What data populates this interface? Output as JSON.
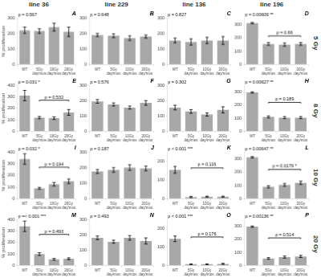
{
  "chart_data": [
    {
      "type": "bar",
      "title": "line 36",
      "ylabel": "% proliferation",
      "panel_label": "A",
      "pvalue_text": "p = 0.567",
      "categories": [
        "WT",
        "5Gy\nday/mos",
        "10Gy\nday/mos",
        "20Gy\nday/mos"
      ],
      "values": [
        220,
        215,
        240,
        210
      ],
      "errors": [
        20,
        15,
        25,
        30
      ],
      "color": "#a8a8a8",
      "ylim": [
        0,
        300
      ],
      "yticks": [
        0,
        100,
        200,
        300
      ],
      "grid": false
    },
    {
      "type": "bar",
      "title": "line 229",
      "panel_label": "B",
      "pvalue_text": "p = 0.648",
      "categories": [
        "WT",
        "5Gy\nday/mos",
        "10Gy\nday/mos",
        "20Gy\nday/mos"
      ],
      "values": [
        190,
        185,
        170,
        180
      ],
      "errors": [
        10,
        12,
        15,
        10
      ],
      "color": "#a8a8a8",
      "ylim": [
        0,
        300
      ],
      "yticks": [
        0,
        100,
        200,
        300
      ],
      "grid": false
    },
    {
      "type": "bar",
      "title": "line 136",
      "panel_label": "C",
      "pvalue_text": "p = 0.827",
      "categories": [
        "WT",
        "5Gy\nday/mos",
        "10Gy\nday/mos",
        "20Gy\nday/mos"
      ],
      "values": [
        155,
        145,
        155,
        155
      ],
      "errors": [
        15,
        20,
        20,
        25
      ],
      "color": "#a8a8a8",
      "ylim": [
        0,
        300
      ],
      "yticks": [
        0,
        100,
        200,
        300
      ],
      "grid": false
    },
    {
      "type": "bar",
      "title": "line 196",
      "side_title": "5 Gy",
      "panel_label": "D",
      "pvalue_text": "p = 0.00609 **",
      "categories": [
        "WT",
        "5Gy\nday/mos",
        "10Gy\nday/mos",
        "20Gy\nday/mos"
      ],
      "values": [
        310,
        155,
        150,
        155
      ],
      "errors": [
        5,
        10,
        12,
        10
      ],
      "color": "#a8a8a8",
      "ylim": [
        0,
        350
      ],
      "yticks": [
        0,
        100,
        200,
        300
      ],
      "grid": false,
      "bracket": {
        "from": "5Gy\nday/mos",
        "to": "20Gy\nday/mos",
        "y": 215,
        "label": "p = 0.66"
      }
    },
    {
      "type": "bar",
      "ylabel": "% proliferation",
      "panel_label": "E",
      "pvalue_text": "p = 0.031 *",
      "categories": [
        "WT",
        "5Gy\nday/mos",
        "10Gy\nday/mos",
        "20Gy\nday/mos"
      ],
      "values": [
        310,
        120,
        115,
        165
      ],
      "errors": [
        45,
        10,
        12,
        25
      ],
      "color": "#a8a8a8",
      "ylim": [
        0,
        400
      ],
      "yticks": [
        0,
        100,
        200,
        300,
        400
      ],
      "grid": false,
      "bracket": {
        "from": "5Gy\nday/mos",
        "to": "20Gy\nday/mos",
        "y": 270,
        "label": "p = 0.532"
      }
    },
    {
      "type": "bar",
      "panel_label": "F",
      "pvalue_text": "p = 0.576",
      "categories": [
        "WT",
        "5Gy\nday/mos",
        "10Gy\nday/mos",
        "20Gy\nday/mos"
      ],
      "values": [
        195,
        175,
        155,
        185
      ],
      "errors": [
        12,
        10,
        10,
        15
      ],
      "color": "#a8a8a8",
      "ylim": [
        0,
        300
      ],
      "yticks": [
        0,
        100,
        200,
        300
      ],
      "grid": false
    },
    {
      "type": "bar",
      "panel_label": "G",
      "pvalue_text": "p = 0.302",
      "categories": [
        "WT",
        "5Gy\nday/mos",
        "10Gy\nday/mos",
        "20Gy\nday/mos"
      ],
      "values": [
        155,
        130,
        110,
        140
      ],
      "errors": [
        15,
        12,
        10,
        20
      ],
      "color": "#a8a8a8",
      "ylim": [
        0,
        300
      ],
      "yticks": [
        0,
        100,
        200,
        300
      ],
      "grid": false
    },
    {
      "type": "bar",
      "side_title": "8 Gy",
      "panel_label": "H",
      "pvalue_text": "p = 0.00627 **",
      "categories": [
        "WT",
        "5Gy\nday/mos",
        "10Gy\nday/mos",
        "20Gy\nday/mos"
      ],
      "values": [
        295,
        110,
        105,
        105
      ],
      "errors": [
        5,
        8,
        8,
        8
      ],
      "color": "#a8a8a8",
      "ylim": [
        0,
        350
      ],
      "yticks": [
        0,
        100,
        200,
        300
      ],
      "grid": false,
      "bracket": {
        "from": "5Gy\nday/mos",
        "to": "20Gy\nday/mos",
        "y": 220,
        "label": "p = 0.189"
      }
    },
    {
      "type": "bar",
      "ylabel": "% proliferation",
      "panel_label": "I",
      "pvalue_text": "p = 0.032 *",
      "categories": [
        "WT",
        "5Gy\nday/mos",
        "10Gy\nday/mos",
        "20Gy\nday/mos"
      ],
      "values": [
        340,
        90,
        125,
        150
      ],
      "errors": [
        45,
        8,
        15,
        20
      ],
      "color": "#a8a8a8",
      "ylim": [
        0,
        400
      ],
      "yticks": [
        0,
        100,
        200,
        300,
        400
      ],
      "grid": false,
      "bracket": {
        "from": "5Gy\nday/mos",
        "to": "20Gy\nday/mos",
        "y": 270,
        "label": "p = 0.194"
      }
    },
    {
      "type": "bar",
      "panel_label": "J",
      "pvalue_text": "p = 0.187",
      "categories": [
        "WT",
        "5Gy\nday/mos",
        "10Gy\nday/mos",
        "20Gy\nday/mos"
      ],
      "values": [
        175,
        185,
        200,
        195
      ],
      "errors": [
        12,
        15,
        18,
        15
      ],
      "color": "#a8a8a8",
      "ylim": [
        0,
        300
      ],
      "yticks": [
        0,
        100,
        200,
        300
      ],
      "grid": false
    },
    {
      "type": "bar",
      "panel_label": "K",
      "pvalue_text": "p < 0.001 ***",
      "categories": [
        "WT",
        "5Gy\nday/mos",
        "10Gy\nday/mos",
        "20Gy\nday/mos"
      ],
      "values": [
        155,
        10,
        12,
        12
      ],
      "errors": [
        18,
        3,
        3,
        3
      ],
      "color": "#a8a8a8",
      "ylim": [
        0,
        250
      ],
      "yticks": [
        0,
        100,
        200
      ],
      "grid": false,
      "bracket": {
        "from": "5Gy\nday/mos",
        "to": "20Gy\nday/mos",
        "y": 165,
        "label": "p = 0.116"
      }
    },
    {
      "type": "bar",
      "side_title": "10 Gy",
      "panel_label": "L",
      "pvalue_text": "p = 0.00647 **",
      "categories": [
        "WT",
        "5Gy\nday/mos",
        "10Gy\nday/mos",
        "20Gy\nday/mos"
      ],
      "values": [
        310,
        90,
        105,
        120
      ],
      "errors": [
        5,
        8,
        10,
        12
      ],
      "color": "#a8a8a8",
      "ylim": [
        0,
        350
      ],
      "yticks": [
        0,
        100,
        200,
        300
      ],
      "grid": false,
      "bracket": {
        "from": "5Gy\nday/mos",
        "to": "20Gy\nday/mos",
        "y": 220,
        "label": "p = 0.0179 *"
      }
    },
    {
      "type": "bar",
      "ylabel": "% proliferation",
      "panel_label": "M",
      "pvalue_text": "p =< 0.001 ***",
      "categories": [
        "WT",
        "5Gy\nday/mos",
        "10Gy\nday/mos",
        "20Gy\nday/mos"
      ],
      "values": [
        340,
        100,
        55,
        60
      ],
      "errors": [
        45,
        12,
        8,
        8
      ],
      "color": "#a8a8a8",
      "ylim": [
        0,
        400
      ],
      "yticks": [
        0,
        100,
        200,
        300,
        400
      ],
      "grid": false,
      "bracket": {
        "from": "5Gy\nday/mos",
        "to": "20Gy\nday/mos",
        "y": 270,
        "label": "p = 0.493"
      }
    },
    {
      "type": "bar",
      "panel_label": "N",
      "pvalue_text": "p = 0.493",
      "categories": [
        "WT",
        "5Gy\nday/mos",
        "10Gy\nday/mos",
        "20Gy\nday/mos"
      ],
      "values": [
        180,
        155,
        180,
        160
      ],
      "errors": [
        12,
        10,
        15,
        20
      ],
      "color": "#a8a8a8",
      "ylim": [
        0,
        300
      ],
      "yticks": [
        0,
        100,
        200,
        300
      ],
      "grid": false
    },
    {
      "type": "bar",
      "panel_label": "O",
      "pvalue_text": "p < 0.001 ***",
      "categories": [
        "WT",
        "5Gy\nday/mos",
        "10Gy\nday/mos",
        "20Gy\nday/mos"
      ],
      "values": [
        145,
        8,
        8,
        10
      ],
      "errors": [
        15,
        2,
        2,
        3
      ],
      "color": "#a8a8a8",
      "ylim": [
        0,
        250
      ],
      "yticks": [
        0,
        100,
        200
      ],
      "grid": false,
      "bracket": {
        "from": "5Gy\nday/mos",
        "to": "20Gy\nday/mos",
        "y": 155,
        "label": "p = 0.176"
      }
    },
    {
      "type": "bar",
      "side_title": "20 Gy",
      "panel_label": "P",
      "pvalue_text": "p = 0.00136 **",
      "categories": [
        "WT",
        "5Gy\nday/mos",
        "10Gy\nday/mos",
        "20Gy\nday/mos"
      ],
      "values": [
        295,
        55,
        65,
        70
      ],
      "errors": [
        5,
        6,
        8,
        8
      ],
      "color": "#a8a8a8",
      "ylim": [
        0,
        350
      ],
      "yticks": [
        0,
        100,
        200,
        300
      ],
      "grid": false,
      "bracket": {
        "from": "5Gy\nday/mos",
        "to": "20Gy\nday/mos",
        "y": 210,
        "label": "p = 0.514"
      }
    }
  ]
}
